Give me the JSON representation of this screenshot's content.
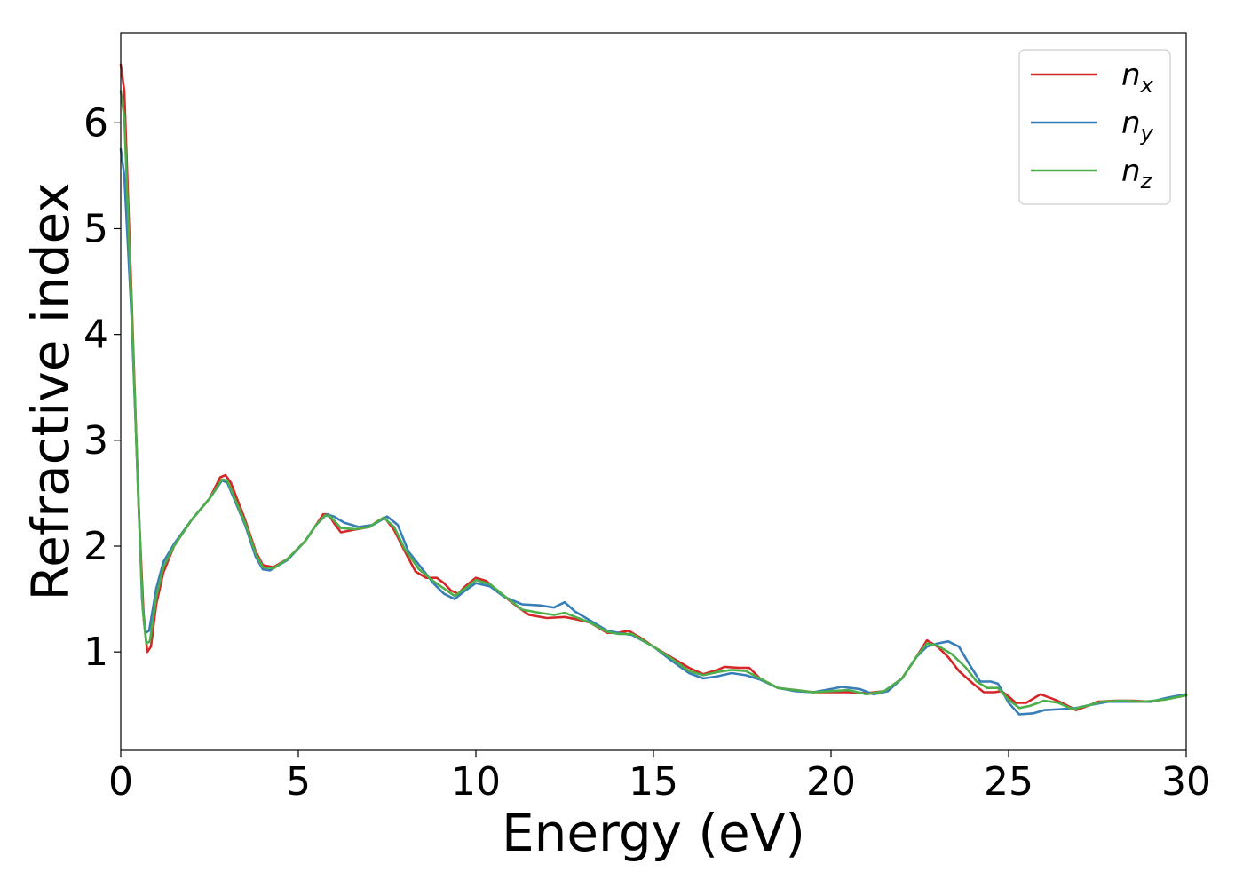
{
  "chart_data": {
    "type": "line",
    "xlabel": "Energy (eV)",
    "ylabel": "Refractive index",
    "xlim": [
      0,
      30
    ],
    "ylim": [
      0.07,
      6.85
    ],
    "x_ticks": [
      0,
      5,
      10,
      15,
      20,
      25,
      30
    ],
    "x_tick_labels": [
      "0",
      "5",
      "10",
      "15",
      "20",
      "25",
      "30"
    ],
    "y_ticks": [
      1,
      2,
      3,
      4,
      5,
      6
    ],
    "y_tick_labels": [
      "1",
      "2",
      "3",
      "4",
      "5",
      "6"
    ],
    "grid": false,
    "legend_position": "top-right",
    "series": [
      {
        "name": "n",
        "subscript": "x",
        "color": "#d62728",
        "points": [
          [
            0,
            6.55
          ],
          [
            0.1,
            6.3
          ],
          [
            0.3,
            4.4
          ],
          [
            0.5,
            2.4
          ],
          [
            0.65,
            1.3
          ],
          [
            0.75,
            1.0
          ],
          [
            0.85,
            1.05
          ],
          [
            1.0,
            1.45
          ],
          [
            1.2,
            1.75
          ],
          [
            1.5,
            2.0
          ],
          [
            2.0,
            2.25
          ],
          [
            2.5,
            2.45
          ],
          [
            2.8,
            2.65
          ],
          [
            2.95,
            2.67
          ],
          [
            3.1,
            2.6
          ],
          [
            3.5,
            2.25
          ],
          [
            3.8,
            1.95
          ],
          [
            4.0,
            1.82
          ],
          [
            4.3,
            1.8
          ],
          [
            4.7,
            1.88
          ],
          [
            5.2,
            2.05
          ],
          [
            5.5,
            2.2
          ],
          [
            5.7,
            2.3
          ],
          [
            5.85,
            2.3
          ],
          [
            6.0,
            2.22
          ],
          [
            6.2,
            2.13
          ],
          [
            6.5,
            2.15
          ],
          [
            7.0,
            2.18
          ],
          [
            7.3,
            2.25
          ],
          [
            7.45,
            2.26
          ],
          [
            7.7,
            2.15
          ],
          [
            8.0,
            1.95
          ],
          [
            8.3,
            1.76
          ],
          [
            8.6,
            1.7
          ],
          [
            8.9,
            1.7
          ],
          [
            9.1,
            1.65
          ],
          [
            9.3,
            1.58
          ],
          [
            9.5,
            1.55
          ],
          [
            9.7,
            1.62
          ],
          [
            10.0,
            1.7
          ],
          [
            10.3,
            1.67
          ],
          [
            10.7,
            1.55
          ],
          [
            11.2,
            1.42
          ],
          [
            11.5,
            1.35
          ],
          [
            12.0,
            1.32
          ],
          [
            12.5,
            1.33
          ],
          [
            12.8,
            1.31
          ],
          [
            13.2,
            1.28
          ],
          [
            13.7,
            1.18
          ],
          [
            14.0,
            1.18
          ],
          [
            14.3,
            1.2
          ],
          [
            14.7,
            1.12
          ],
          [
            15.0,
            1.05
          ],
          [
            15.5,
            0.95
          ],
          [
            16.0,
            0.85
          ],
          [
            16.4,
            0.79
          ],
          [
            16.8,
            0.83
          ],
          [
            17.0,
            0.86
          ],
          [
            17.4,
            0.85
          ],
          [
            17.7,
            0.85
          ],
          [
            18.0,
            0.75
          ],
          [
            18.5,
            0.66
          ],
          [
            19.0,
            0.64
          ],
          [
            19.5,
            0.62
          ],
          [
            20.0,
            0.62
          ],
          [
            20.5,
            0.62
          ],
          [
            21.0,
            0.61
          ],
          [
            21.5,
            0.63
          ],
          [
            22.0,
            0.75
          ],
          [
            22.4,
            0.95
          ],
          [
            22.7,
            1.11
          ],
          [
            23.0,
            1.05
          ],
          [
            23.3,
            0.95
          ],
          [
            23.6,
            0.82
          ],
          [
            24.0,
            0.7
          ],
          [
            24.3,
            0.62
          ],
          [
            24.6,
            0.62
          ],
          [
            24.8,
            0.63
          ],
          [
            25.0,
            0.58
          ],
          [
            25.2,
            0.52
          ],
          [
            25.5,
            0.52
          ],
          [
            25.9,
            0.6
          ],
          [
            26.3,
            0.55
          ],
          [
            26.5,
            0.52
          ],
          [
            26.9,
            0.45
          ],
          [
            27.3,
            0.5
          ],
          [
            27.5,
            0.53
          ],
          [
            28.0,
            0.54
          ],
          [
            28.5,
            0.54
          ],
          [
            29.0,
            0.53
          ],
          [
            29.5,
            0.56
          ],
          [
            30.0,
            0.59
          ]
        ]
      },
      {
        "name": "n",
        "subscript": "y",
        "color": "#377eb8",
        "points": [
          [
            0,
            5.75
          ],
          [
            0.1,
            5.5
          ],
          [
            0.3,
            4.2
          ],
          [
            0.5,
            2.45
          ],
          [
            0.6,
            1.5
          ],
          [
            0.7,
            1.18
          ],
          [
            0.8,
            1.2
          ],
          [
            1.0,
            1.6
          ],
          [
            1.2,
            1.85
          ],
          [
            1.5,
            2.02
          ],
          [
            2.0,
            2.25
          ],
          [
            2.5,
            2.45
          ],
          [
            2.85,
            2.62
          ],
          [
            3.0,
            2.6
          ],
          [
            3.5,
            2.2
          ],
          [
            3.8,
            1.9
          ],
          [
            4.0,
            1.78
          ],
          [
            4.2,
            1.77
          ],
          [
            4.7,
            1.87
          ],
          [
            5.2,
            2.05
          ],
          [
            5.5,
            2.2
          ],
          [
            5.8,
            2.3
          ],
          [
            6.0,
            2.28
          ],
          [
            6.3,
            2.22
          ],
          [
            6.7,
            2.18
          ],
          [
            7.1,
            2.2
          ],
          [
            7.5,
            2.28
          ],
          [
            7.8,
            2.2
          ],
          [
            8.1,
            1.95
          ],
          [
            8.5,
            1.78
          ],
          [
            8.8,
            1.65
          ],
          [
            9.1,
            1.55
          ],
          [
            9.4,
            1.5
          ],
          [
            9.7,
            1.58
          ],
          [
            10.0,
            1.65
          ],
          [
            10.4,
            1.62
          ],
          [
            10.8,
            1.52
          ],
          [
            11.3,
            1.45
          ],
          [
            11.8,
            1.44
          ],
          [
            12.2,
            1.42
          ],
          [
            12.5,
            1.47
          ],
          [
            12.8,
            1.38
          ],
          [
            13.2,
            1.3
          ],
          [
            13.7,
            1.2
          ],
          [
            14.0,
            1.18
          ],
          [
            14.4,
            1.16
          ],
          [
            15.0,
            1.05
          ],
          [
            15.5,
            0.92
          ],
          [
            16.0,
            0.8
          ],
          [
            16.4,
            0.75
          ],
          [
            16.8,
            0.77
          ],
          [
            17.2,
            0.8
          ],
          [
            17.6,
            0.78
          ],
          [
            18.0,
            0.74
          ],
          [
            18.5,
            0.66
          ],
          [
            19.0,
            0.63
          ],
          [
            19.5,
            0.62
          ],
          [
            20.0,
            0.65
          ],
          [
            20.3,
            0.67
          ],
          [
            20.8,
            0.65
          ],
          [
            21.2,
            0.6
          ],
          [
            21.6,
            0.63
          ],
          [
            22.0,
            0.75
          ],
          [
            22.4,
            0.95
          ],
          [
            22.7,
            1.05
          ],
          [
            23.0,
            1.08
          ],
          [
            23.3,
            1.1
          ],
          [
            23.6,
            1.05
          ],
          [
            23.9,
            0.88
          ],
          [
            24.2,
            0.72
          ],
          [
            24.5,
            0.72
          ],
          [
            24.7,
            0.7
          ],
          [
            25.0,
            0.52
          ],
          [
            25.3,
            0.41
          ],
          [
            25.7,
            0.42
          ],
          [
            26.0,
            0.45
          ],
          [
            26.5,
            0.46
          ],
          [
            26.9,
            0.47
          ],
          [
            27.3,
            0.5
          ],
          [
            27.8,
            0.53
          ],
          [
            28.5,
            0.53
          ],
          [
            29.0,
            0.53
          ],
          [
            29.5,
            0.57
          ],
          [
            30.0,
            0.6
          ]
        ]
      },
      {
        "name": "n",
        "subscript": "z",
        "color": "#4daf4a",
        "points": [
          [
            0,
            6.3
          ],
          [
            0.1,
            6.05
          ],
          [
            0.3,
            4.3
          ],
          [
            0.5,
            2.4
          ],
          [
            0.62,
            1.4
          ],
          [
            0.72,
            1.08
          ],
          [
            0.82,
            1.1
          ],
          [
            1.0,
            1.52
          ],
          [
            1.2,
            1.8
          ],
          [
            1.5,
            2.0
          ],
          [
            2.0,
            2.25
          ],
          [
            2.5,
            2.45
          ],
          [
            2.85,
            2.63
          ],
          [
            3.0,
            2.62
          ],
          [
            3.5,
            2.22
          ],
          [
            3.8,
            1.93
          ],
          [
            4.0,
            1.8
          ],
          [
            4.3,
            1.79
          ],
          [
            4.7,
            1.88
          ],
          [
            5.2,
            2.05
          ],
          [
            5.5,
            2.2
          ],
          [
            5.75,
            2.29
          ],
          [
            5.9,
            2.28
          ],
          [
            6.2,
            2.17
          ],
          [
            6.6,
            2.16
          ],
          [
            7.0,
            2.18
          ],
          [
            7.4,
            2.27
          ],
          [
            7.7,
            2.18
          ],
          [
            8.0,
            1.97
          ],
          [
            8.4,
            1.78
          ],
          [
            8.8,
            1.67
          ],
          [
            9.1,
            1.6
          ],
          [
            9.4,
            1.53
          ],
          [
            9.7,
            1.6
          ],
          [
            10.0,
            1.68
          ],
          [
            10.4,
            1.64
          ],
          [
            10.8,
            1.53
          ],
          [
            11.3,
            1.4
          ],
          [
            11.8,
            1.37
          ],
          [
            12.2,
            1.35
          ],
          [
            12.5,
            1.37
          ],
          [
            12.8,
            1.33
          ],
          [
            13.2,
            1.28
          ],
          [
            13.7,
            1.19
          ],
          [
            14.0,
            1.17
          ],
          [
            14.4,
            1.17
          ],
          [
            15.0,
            1.05
          ],
          [
            15.5,
            0.94
          ],
          [
            16.0,
            0.82
          ],
          [
            16.4,
            0.78
          ],
          [
            16.8,
            0.81
          ],
          [
            17.2,
            0.83
          ],
          [
            17.6,
            0.82
          ],
          [
            18.0,
            0.75
          ],
          [
            18.5,
            0.66
          ],
          [
            19.0,
            0.64
          ],
          [
            19.5,
            0.62
          ],
          [
            20.0,
            0.63
          ],
          [
            20.5,
            0.64
          ],
          [
            21.0,
            0.6
          ],
          [
            21.5,
            0.63
          ],
          [
            22.0,
            0.75
          ],
          [
            22.4,
            0.95
          ],
          [
            22.7,
            1.08
          ],
          [
            23.0,
            1.06
          ],
          [
            23.4,
            0.98
          ],
          [
            23.8,
            0.85
          ],
          [
            24.1,
            0.72
          ],
          [
            24.4,
            0.66
          ],
          [
            24.7,
            0.66
          ],
          [
            25.0,
            0.55
          ],
          [
            25.3,
            0.47
          ],
          [
            25.6,
            0.49
          ],
          [
            26.0,
            0.54
          ],
          [
            26.4,
            0.52
          ],
          [
            26.8,
            0.46
          ],
          [
            27.2,
            0.49
          ],
          [
            27.6,
            0.53
          ],
          [
            28.2,
            0.54
          ],
          [
            28.8,
            0.53
          ],
          [
            29.4,
            0.55
          ],
          [
            30.0,
            0.59
          ]
        ]
      }
    ]
  }
}
